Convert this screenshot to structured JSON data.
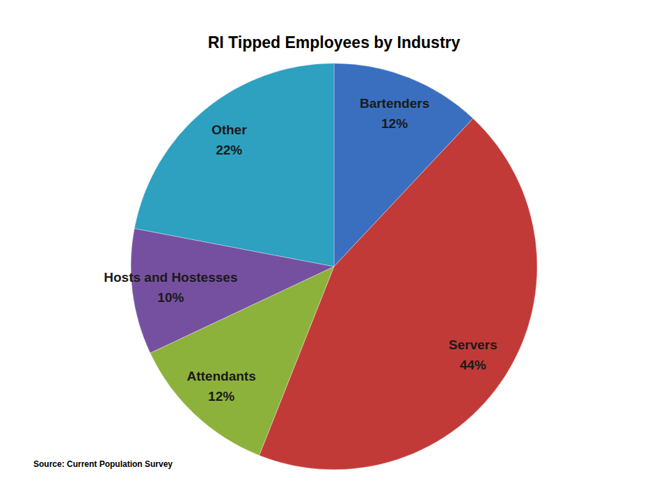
{
  "chart_data": {
    "type": "pie",
    "title": "RI Tipped Employees by Industry",
    "annotations": [
      "Source: Current Population Survey"
    ],
    "categories": [
      "Bartenders",
      "Servers",
      "Attendants",
      "Hosts and Hostesses",
      "Other"
    ],
    "values": [
      12,
      44,
      12,
      10,
      22
    ],
    "value_labels": [
      "12%",
      "44%",
      "12%",
      "10%",
      "22%"
    ],
    "colors": [
      "#3a6fc0",
      "#c23a38",
      "#8db23c",
      "#7650a0",
      "#2ea0c0"
    ],
    "data_labels": true
  }
}
